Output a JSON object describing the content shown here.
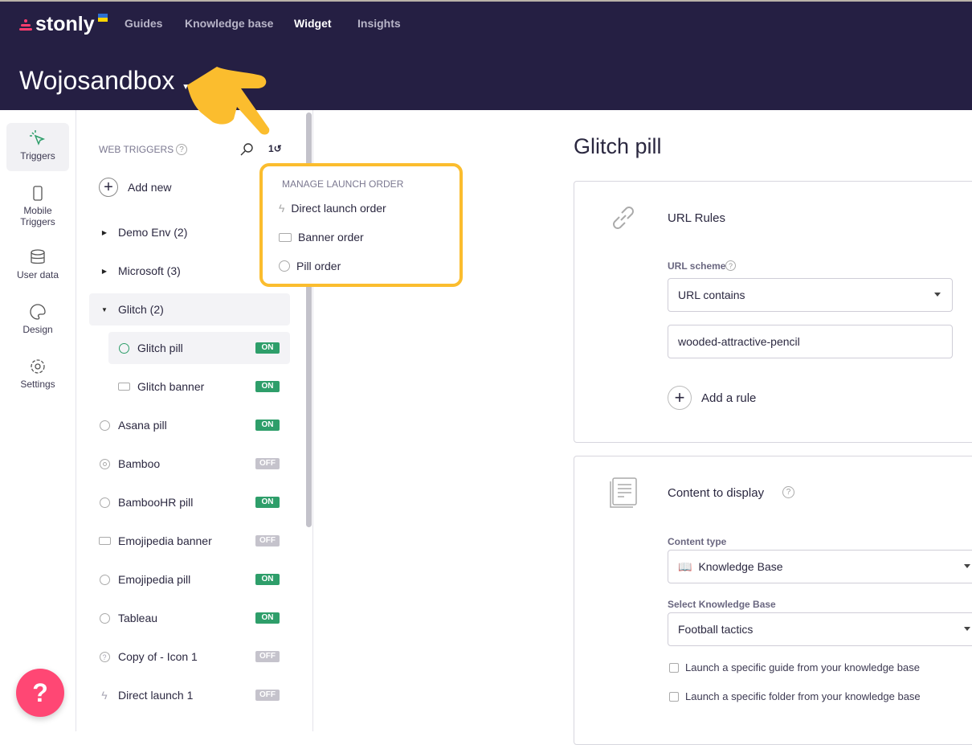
{
  "header": {
    "brand": "stonly",
    "nav": [
      "Guides",
      "Knowledge base",
      "Widget",
      "Insights"
    ],
    "active_nav": "Widget",
    "workspace": "Wojosandbox"
  },
  "leftnav": [
    {
      "label": "Triggers",
      "icon": "cursor-click-icon"
    },
    {
      "label": "Mobile Triggers",
      "icon": "mobile-icon"
    },
    {
      "label": "User data",
      "icon": "database-icon"
    },
    {
      "label": "Design",
      "icon": "palette-icon"
    },
    {
      "label": "Settings",
      "icon": "gear-icon"
    }
  ],
  "list": {
    "heading": "WEB TRIGGERS",
    "add_new": "Add new",
    "rows": [
      {
        "label": "Demo Env (2)",
        "type": "folder",
        "expanded": false
      },
      {
        "label": "Microsoft (3)",
        "type": "folder",
        "expanded": false
      },
      {
        "label": "Glitch (2)",
        "type": "folder",
        "expanded": true
      },
      {
        "label": "Glitch pill",
        "type": "pill",
        "status": "ON",
        "child": true,
        "selected": true
      },
      {
        "label": "Glitch banner",
        "type": "banner",
        "status": "ON",
        "child": true
      },
      {
        "label": "Asana pill",
        "type": "pill",
        "status": "ON"
      },
      {
        "label": "Bamboo",
        "type": "target",
        "status": "OFF"
      },
      {
        "label": "BambooHR pill",
        "type": "pill",
        "status": "ON"
      },
      {
        "label": "Emojipedia banner",
        "type": "banner",
        "status": "OFF"
      },
      {
        "label": "Emojipedia pill",
        "type": "pill",
        "status": "ON"
      },
      {
        "label": "Tableau",
        "type": "pill",
        "status": "ON"
      },
      {
        "label": "Copy of - Icon 1",
        "type": "question",
        "status": "OFF"
      },
      {
        "label": "Direct launch 1",
        "type": "bolt",
        "status": "OFF"
      }
    ]
  },
  "popup": {
    "heading": "MANAGE LAUNCH ORDER",
    "items": [
      {
        "label": "Direct launch order",
        "icon": "bolt-icon"
      },
      {
        "label": "Banner order",
        "icon": "banner-icon"
      },
      {
        "label": "Pill order",
        "icon": "pill-icon"
      }
    ]
  },
  "main": {
    "title": "Glitch pill",
    "url_rules": {
      "title": "URL Rules",
      "scheme_label": "URL scheme",
      "scheme_value": "URL contains",
      "url_value": "wooded-attractive-pencil",
      "add_rule": "Add a rule"
    },
    "content": {
      "title": "Content to display",
      "type_label": "Content type",
      "type_value": "Knowledge Base",
      "kb_label": "Select Knowledge Base",
      "kb_value": "Football tactics",
      "check1": "Launch a specific guide from your knowledge base",
      "check2": "Launch a specific folder from your knowledge base"
    }
  },
  "colors": {
    "header_bg": "#251f43",
    "on": "#2e9e6a",
    "off": "#c5c3cc",
    "highlight": "#fbbd2e",
    "help": "#ff4774"
  },
  "help_label": "?"
}
